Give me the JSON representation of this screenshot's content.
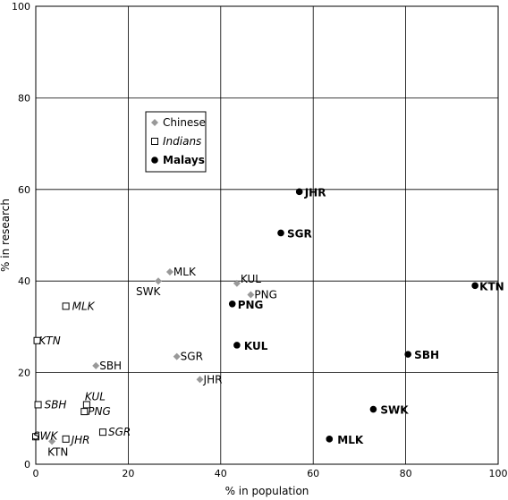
{
  "chart_data": {
    "type": "scatter",
    "xlabel": "% in population",
    "ylabel": "% in research",
    "xlim": [
      0,
      100
    ],
    "ylim": [
      0,
      100
    ],
    "x_ticks": [
      0,
      20,
      40,
      60,
      80,
      100
    ],
    "y_ticks": [
      0,
      20,
      40,
      60,
      80,
      100
    ],
    "grid": true,
    "legend_placement": "upper-left",
    "series": [
      {
        "name": "Chinese",
        "marker": "diamond",
        "color": "#999999",
        "label_style": "normal",
        "points": [
          {
            "label": "MLK",
            "x": 29,
            "y": 42
          },
          {
            "label": "SWK",
            "x": 26.5,
            "y": 40
          },
          {
            "label": "KUL",
            "x": 43.5,
            "y": 39.5
          },
          {
            "label": "PNG",
            "x": 46.5,
            "y": 37
          },
          {
            "label": "SBH",
            "x": 13,
            "y": 21.5
          },
          {
            "label": "SGR",
            "x": 30.5,
            "y": 23.5
          },
          {
            "label": "JHR",
            "x": 35.5,
            "y": 18.5
          },
          {
            "label": "KTN",
            "x": 3.5,
            "y": 5
          }
        ]
      },
      {
        "name": "Indians",
        "marker": "square-open",
        "color": "#000000",
        "label_style": "italic",
        "points": [
          {
            "label": "MLK",
            "x": 6.5,
            "y": 34.5
          },
          {
            "label": "KTN",
            "x": 0.3,
            "y": 27
          },
          {
            "label": "KUL",
            "x": 11,
            "y": 13
          },
          {
            "label": "PNG",
            "x": 10.5,
            "y": 11.5
          },
          {
            "label": "SBH",
            "x": 0.5,
            "y": 13
          },
          {
            "label": "SGR",
            "x": 14.5,
            "y": 7
          },
          {
            "label": "SWK",
            "x": 0,
            "y": 6
          },
          {
            "label": "JHR",
            "x": 6.5,
            "y": 5.5
          }
        ]
      },
      {
        "name": "Malays",
        "marker": "circle-filled",
        "color": "#000000",
        "label_style": "bold",
        "points": [
          {
            "label": "JHR",
            "x": 57,
            "y": 59.5
          },
          {
            "label": "SGR",
            "x": 53,
            "y": 50.5
          },
          {
            "label": "KTN",
            "x": 95,
            "y": 39
          },
          {
            "label": "PNG",
            "x": 42.5,
            "y": 35
          },
          {
            "label": "KUL",
            "x": 43.5,
            "y": 26
          },
          {
            "label": "SBH",
            "x": 80.5,
            "y": 24
          },
          {
            "label": "SWK",
            "x": 73,
            "y": 12
          },
          {
            "label": "MLK",
            "x": 63.5,
            "y": 5.5
          }
        ]
      }
    ]
  }
}
